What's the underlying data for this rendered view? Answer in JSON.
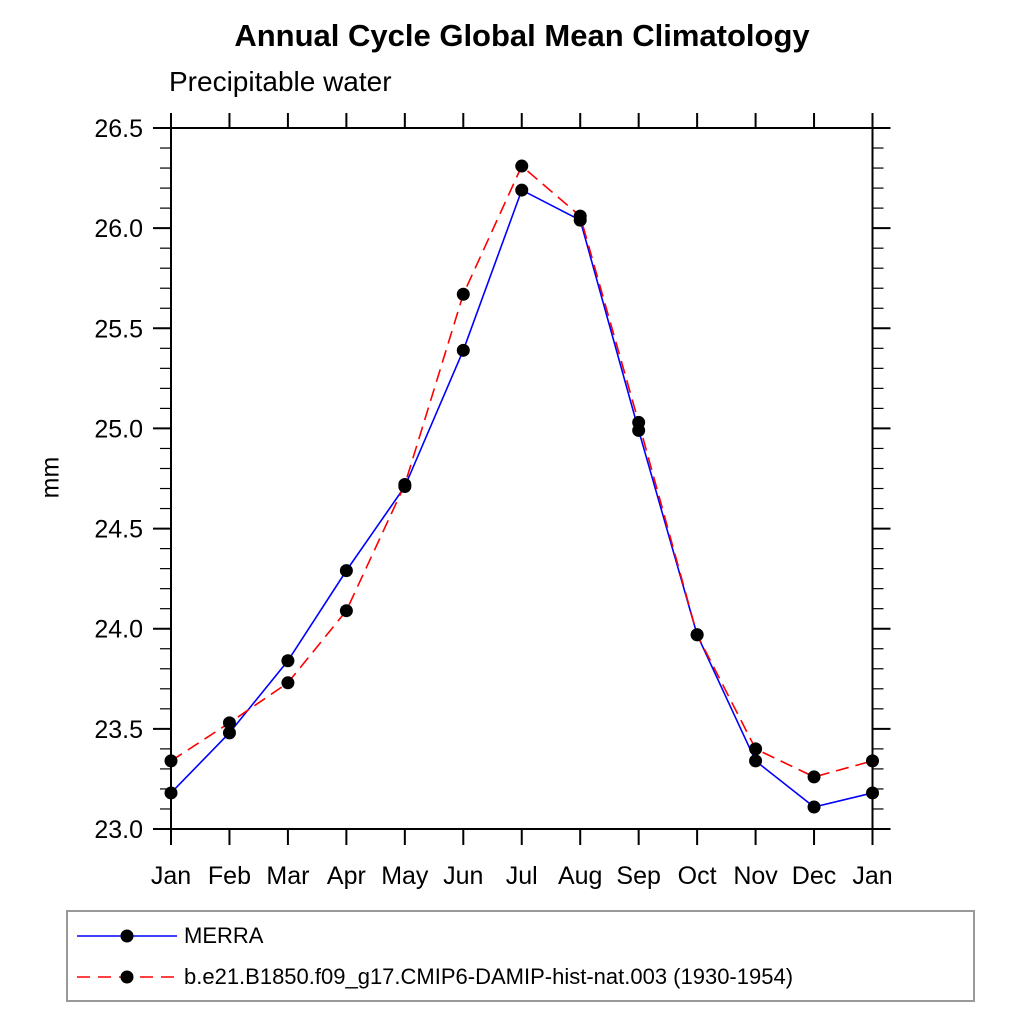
{
  "chart_data": {
    "type": "line",
    "title": "Annual Cycle Global Mean Climatology",
    "subtitle": "Precipitable water",
    "ylabel": "mm",
    "xlabel": "",
    "categories": [
      "Jan",
      "Feb",
      "Mar",
      "Apr",
      "May",
      "Jun",
      "Jul",
      "Aug",
      "Sep",
      "Oct",
      "Nov",
      "Dec",
      "Jan"
    ],
    "ylim": [
      23.0,
      26.5
    ],
    "yticks": [
      "23.0",
      "23.5",
      "24.0",
      "24.5",
      "25.0",
      "25.5",
      "26.0",
      "26.5"
    ],
    "ytick_minor_step": 0.1,
    "grid": false,
    "legend_position": "bottom-left-box",
    "marker_color": "#000000",
    "series": [
      {
        "name": "MERRA",
        "color": "#0000ff",
        "style": "solid",
        "marker": "circle",
        "values": [
          23.18,
          23.48,
          23.84,
          24.29,
          24.71,
          25.39,
          26.19,
          26.04,
          24.99,
          23.97,
          23.34,
          23.11,
          23.18
        ]
      },
      {
        "name": "b.e21.B1850.f09_g17.CMIP6-DAMIP-hist-nat.003 (1930-1954)",
        "color": "#ff0000",
        "style": "dashed",
        "marker": "circle",
        "values": [
          23.34,
          23.53,
          23.73,
          24.09,
          24.72,
          25.67,
          26.31,
          26.06,
          25.03,
          23.97,
          23.4,
          23.26,
          23.34
        ]
      }
    ]
  }
}
